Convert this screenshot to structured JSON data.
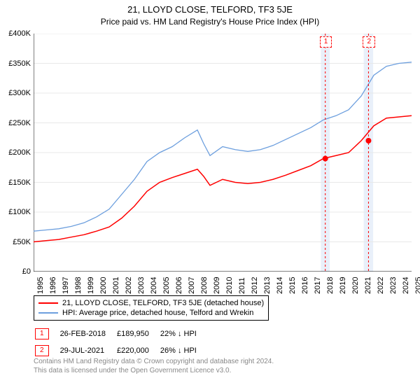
{
  "title": "21, LLOYD CLOSE, TELFORD, TF3 5JE",
  "subtitle": "Price paid vs. HM Land Registry's House Price Index (HPI)",
  "chart": {
    "type": "line",
    "background_color": "#ffffff",
    "grid_color": "#e8e8e8",
    "axis_color": "#000000",
    "ylim": [
      0,
      400000
    ],
    "ytick_step": 50000,
    "yticks": [
      "£0",
      "£50K",
      "£100K",
      "£150K",
      "£200K",
      "£250K",
      "£300K",
      "£350K",
      "£400K"
    ],
    "xlim": [
      1995,
      2025
    ],
    "xticks": [
      1995,
      1996,
      1997,
      1998,
      1999,
      2000,
      2001,
      2002,
      2003,
      2004,
      2005,
      2006,
      2007,
      2008,
      2009,
      2010,
      2011,
      2012,
      2013,
      2014,
      2015,
      2016,
      2017,
      2018,
      2019,
      2020,
      2021,
      2022,
      2023,
      2024,
      2025
    ],
    "tick_fontsize": 11,
    "series": [
      {
        "name": "property",
        "label": "21, LLOYD CLOSE, TELFORD, TF3 5JE (detached house)",
        "color": "#ff0000",
        "line_width": 1.5,
        "points": [
          [
            1995,
            50000
          ],
          [
            1996,
            52000
          ],
          [
            1997,
            54000
          ],
          [
            1998,
            58000
          ],
          [
            1999,
            62000
          ],
          [
            2000,
            68000
          ],
          [
            2001,
            75000
          ],
          [
            2002,
            90000
          ],
          [
            2003,
            110000
          ],
          [
            2004,
            135000
          ],
          [
            2005,
            150000
          ],
          [
            2006,
            158000
          ],
          [
            2007,
            165000
          ],
          [
            2008,
            172000
          ],
          [
            2008.5,
            160000
          ],
          [
            2009,
            145000
          ],
          [
            2010,
            155000
          ],
          [
            2011,
            150000
          ],
          [
            2012,
            148000
          ],
          [
            2013,
            150000
          ],
          [
            2014,
            155000
          ],
          [
            2015,
            162000
          ],
          [
            2016,
            170000
          ],
          [
            2017,
            178000
          ],
          [
            2018,
            190000
          ],
          [
            2019,
            195000
          ],
          [
            2020,
            200000
          ],
          [
            2021,
            220000
          ],
          [
            2022,
            245000
          ],
          [
            2023,
            258000
          ],
          [
            2024,
            260000
          ],
          [
            2025,
            262000
          ]
        ]
      },
      {
        "name": "hpi",
        "label": "HPI: Average price, detached house, Telford and Wrekin",
        "color": "#6d9fde",
        "line_width": 1.3,
        "points": [
          [
            1995,
            68000
          ],
          [
            1996,
            70000
          ],
          [
            1997,
            72000
          ],
          [
            1998,
            76000
          ],
          [
            1999,
            82000
          ],
          [
            2000,
            92000
          ],
          [
            2001,
            105000
          ],
          [
            2002,
            130000
          ],
          [
            2003,
            155000
          ],
          [
            2004,
            185000
          ],
          [
            2005,
            200000
          ],
          [
            2006,
            210000
          ],
          [
            2007,
            225000
          ],
          [
            2008,
            238000
          ],
          [
            2008.5,
            215000
          ],
          [
            2009,
            195000
          ],
          [
            2010,
            210000
          ],
          [
            2011,
            205000
          ],
          [
            2012,
            202000
          ],
          [
            2013,
            205000
          ],
          [
            2014,
            212000
          ],
          [
            2015,
            222000
          ],
          [
            2016,
            232000
          ],
          [
            2017,
            242000
          ],
          [
            2018,
            255000
          ],
          [
            2019,
            262000
          ],
          [
            2020,
            272000
          ],
          [
            2021,
            295000
          ],
          [
            2022,
            330000
          ],
          [
            2023,
            345000
          ],
          [
            2024,
            350000
          ],
          [
            2025,
            352000
          ]
        ]
      }
    ],
    "sale_markers": [
      {
        "index": 1,
        "year": 2018.15,
        "price": 189950,
        "color": "#ff0000",
        "band_years": [
          2017.8,
          2018.5
        ],
        "band_color": "#e9f0fa"
      },
      {
        "index": 2,
        "year": 2021.58,
        "price": 220000,
        "color": "#ff0000",
        "band_years": [
          2021.2,
          2021.95
        ],
        "band_color": "#e9f0fa"
      }
    ]
  },
  "legend": {
    "items": [
      {
        "color": "#ff0000",
        "label": "21, LLOYD CLOSE, TELFORD, TF3 5JE (detached house)"
      },
      {
        "color": "#6d9fde",
        "label": "HPI: Average price, detached house, Telford and Wrekin"
      }
    ]
  },
  "sales_table": {
    "rows": [
      {
        "marker": "1",
        "marker_color": "#ff0000",
        "date": "26-FEB-2018",
        "price": "£189,950",
        "pct": "22% ↓ HPI"
      },
      {
        "marker": "2",
        "marker_color": "#ff0000",
        "date": "29-JUL-2021",
        "price": "£220,000",
        "pct": "26% ↓ HPI"
      }
    ]
  },
  "footer_line1": "Contains HM Land Registry data © Crown copyright and database right 2024.",
  "footer_line2": "This data is licensed under the Open Government Licence v3.0."
}
